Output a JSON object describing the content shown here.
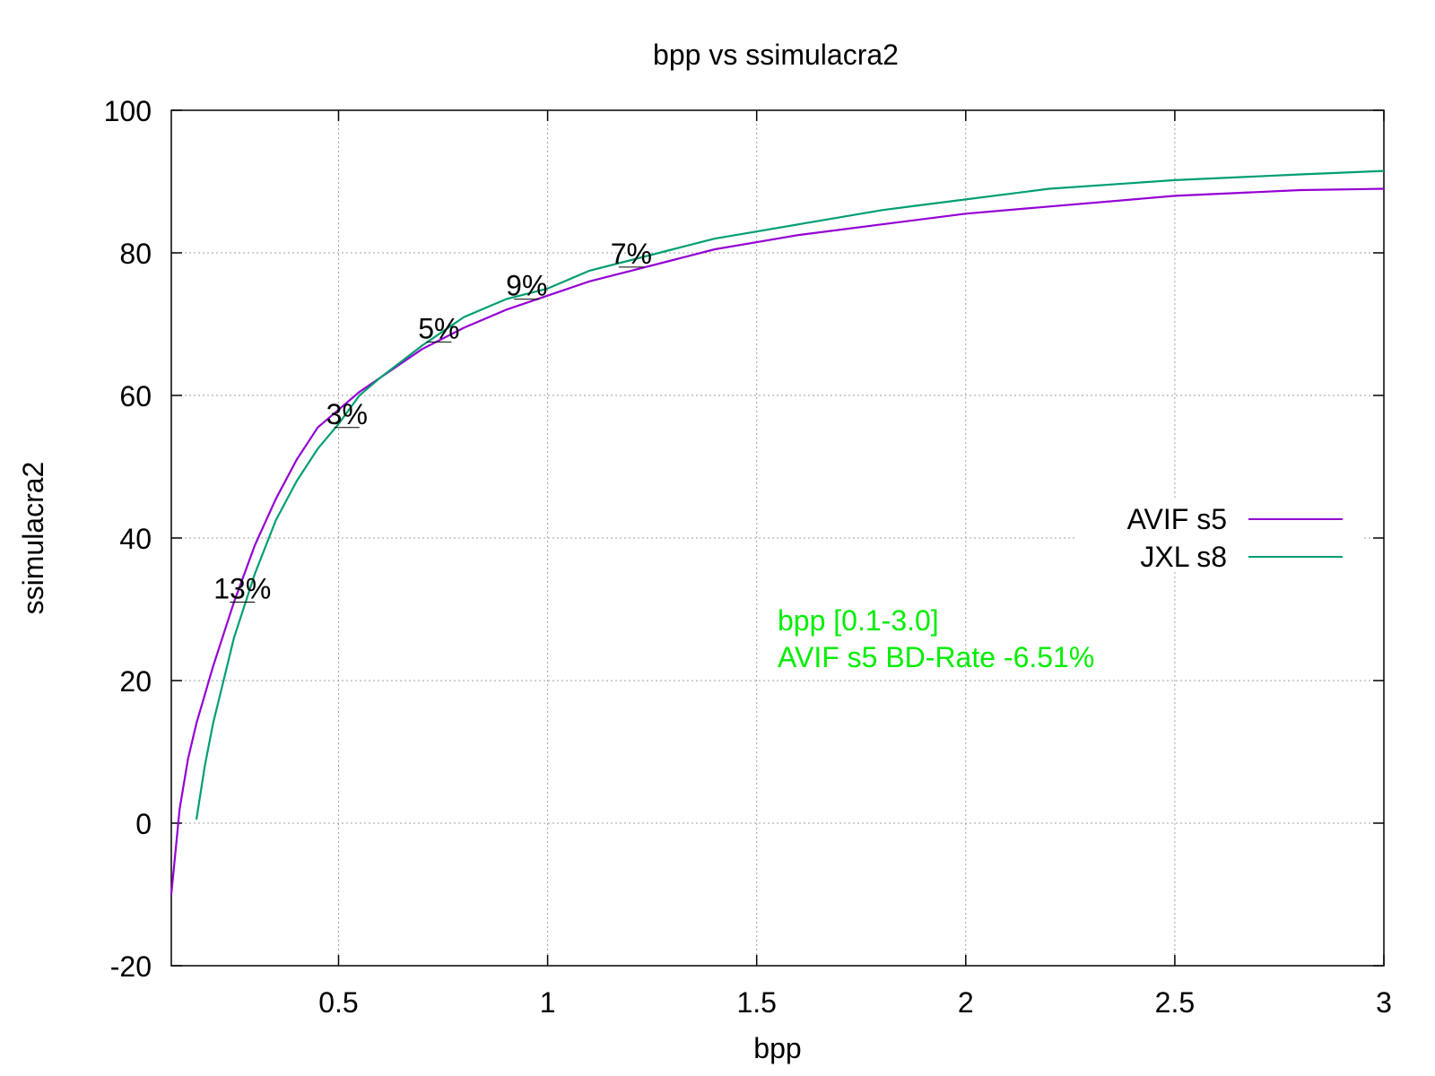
{
  "chart_data": {
    "type": "line",
    "title": "bpp vs ssimulacra2",
    "xlabel": "bpp",
    "ylabel": "ssimulacra2",
    "xlim": [
      0.1,
      3.0
    ],
    "ylim": [
      -20,
      100
    ],
    "xticks": [
      0.5,
      1,
      1.5,
      2,
      2.5,
      3
    ],
    "xtick_labels": [
      "0.5",
      "1",
      "1.5",
      "2",
      "2.5",
      "3"
    ],
    "yticks": [
      -20,
      0,
      20,
      40,
      60,
      80,
      100
    ],
    "ytick_labels": [
      "-20",
      "0",
      "20",
      "40",
      "60",
      "80",
      "100"
    ],
    "grid": true,
    "legend_position": "right",
    "series": [
      {
        "name": "AVIF s5",
        "color": "#9400d3",
        "x": [
          0.1,
          0.12,
          0.14,
          0.16,
          0.18,
          0.2,
          0.25,
          0.3,
          0.35,
          0.4,
          0.45,
          0.5,
          0.55,
          0.6,
          0.7,
          0.8,
          0.9,
          1.0,
          1.1,
          1.2,
          1.3,
          1.4,
          1.5,
          1.6,
          1.8,
          2.0,
          2.2,
          2.5,
          2.8,
          3.0
        ],
        "y": [
          -10,
          2,
          9,
          14,
          18,
          22,
          31,
          39,
          45.5,
          51,
          55.5,
          58,
          60.5,
          62.5,
          66.5,
          69.5,
          72,
          74,
          76,
          77.5,
          79,
          80.5,
          81.5,
          82.5,
          84,
          85.5,
          86.5,
          88,
          88.8,
          89
        ]
      },
      {
        "name": "JXL s8",
        "color": "#009e73",
        "x": [
          0.16,
          0.18,
          0.2,
          0.25,
          0.3,
          0.35,
          0.4,
          0.45,
          0.5,
          0.55,
          0.6,
          0.7,
          0.8,
          0.9,
          1.0,
          1.1,
          1.2,
          1.3,
          1.4,
          1.5,
          1.6,
          1.8,
          2.0,
          2.2,
          2.5,
          2.8,
          3.0
        ],
        "y": [
          0.5,
          8,
          14,
          26,
          35,
          42.5,
          48,
          52.5,
          56,
          60,
          62.5,
          67,
          71,
          73.5,
          75,
          77.5,
          79,
          80.5,
          82,
          83,
          84,
          86,
          87.5,
          89,
          90.2,
          91,
          91.5
        ]
      }
    ],
    "annotations": [
      {
        "text": "13%",
        "x": 0.27,
        "y": 31
      },
      {
        "text": "3%",
        "x": 0.52,
        "y": 55.5
      },
      {
        "text": "5%",
        "x": 0.74,
        "y": 67.5
      },
      {
        "text": "9%",
        "x": 0.95,
        "y": 73.5
      },
      {
        "text": "7%",
        "x": 1.2,
        "y": 78
      }
    ],
    "info_lines": [
      "bpp [0.1-3.0]",
      "AVIF s5 BD-Rate -6.51%"
    ],
    "info_color": "#00ee00"
  }
}
